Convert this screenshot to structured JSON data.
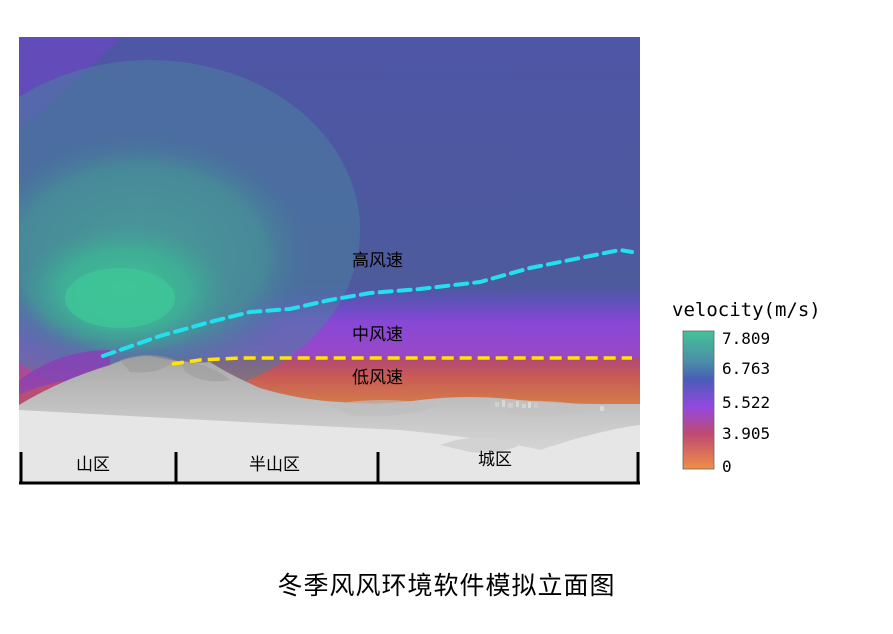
{
  "labels": {
    "high_wind": "高风速",
    "mid_wind": "中风速",
    "low_wind": "低风速"
  },
  "zones": {
    "mountain": "山区",
    "semi_mountain": "半山区",
    "city": "城区"
  },
  "legend": {
    "title": "velocity(m/s)",
    "ticks": [
      "7.809",
      "6.763",
      "5.522",
      "3.905",
      "0"
    ]
  },
  "caption": "冬季风风环境软件模拟立面图",
  "colors": {
    "high_line": "#22e0f0",
    "low_line": "#ffe600",
    "legend_top": "#44c29a",
    "legend_upper": "#4a5db8",
    "legend_mid": "#9348e0",
    "legend_lower": "#c04a70",
    "legend_bottom": "#f08f48"
  }
}
